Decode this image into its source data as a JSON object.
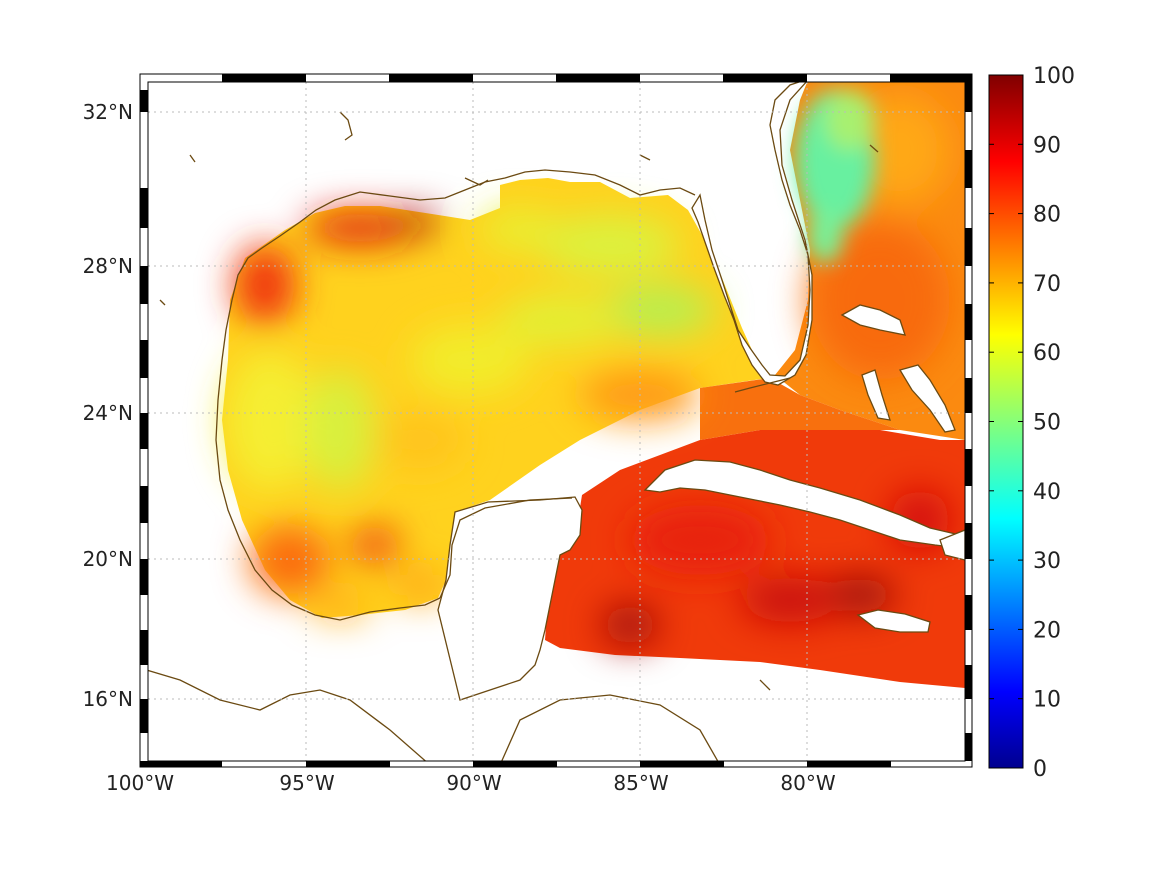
{
  "map": {
    "lon_range": [
      -100,
      -75
    ],
    "lat_range": [
      14.3,
      33
    ],
    "lon_ticks": [
      {
        "value": -100,
        "label": "100°W"
      },
      {
        "value": -95,
        "label": "95°W"
      },
      {
        "value": -90,
        "label": "90°W"
      },
      {
        "value": -85,
        "label": "85°W"
      },
      {
        "value": -80,
        "label": "80°W"
      }
    ],
    "lat_ticks": [
      {
        "value": 32,
        "label": "32°N"
      },
      {
        "value": 28,
        "label": "28°N"
      },
      {
        "value": 24,
        "label": "24°N"
      },
      {
        "value": 20,
        "label": "20°N"
      },
      {
        "value": 16,
        "label": "16°N"
      }
    ],
    "grid": "dotted",
    "colors": {
      "coastline": "#6b4a12",
      "frame": "#000000",
      "land": "#ffffff"
    }
  },
  "colorbar": {
    "colormap": "jet",
    "range": [
      0,
      100
    ],
    "ticks": [
      "0",
      "10",
      "20",
      "30",
      "40",
      "50",
      "60",
      "70",
      "80",
      "90",
      "100"
    ]
  }
}
